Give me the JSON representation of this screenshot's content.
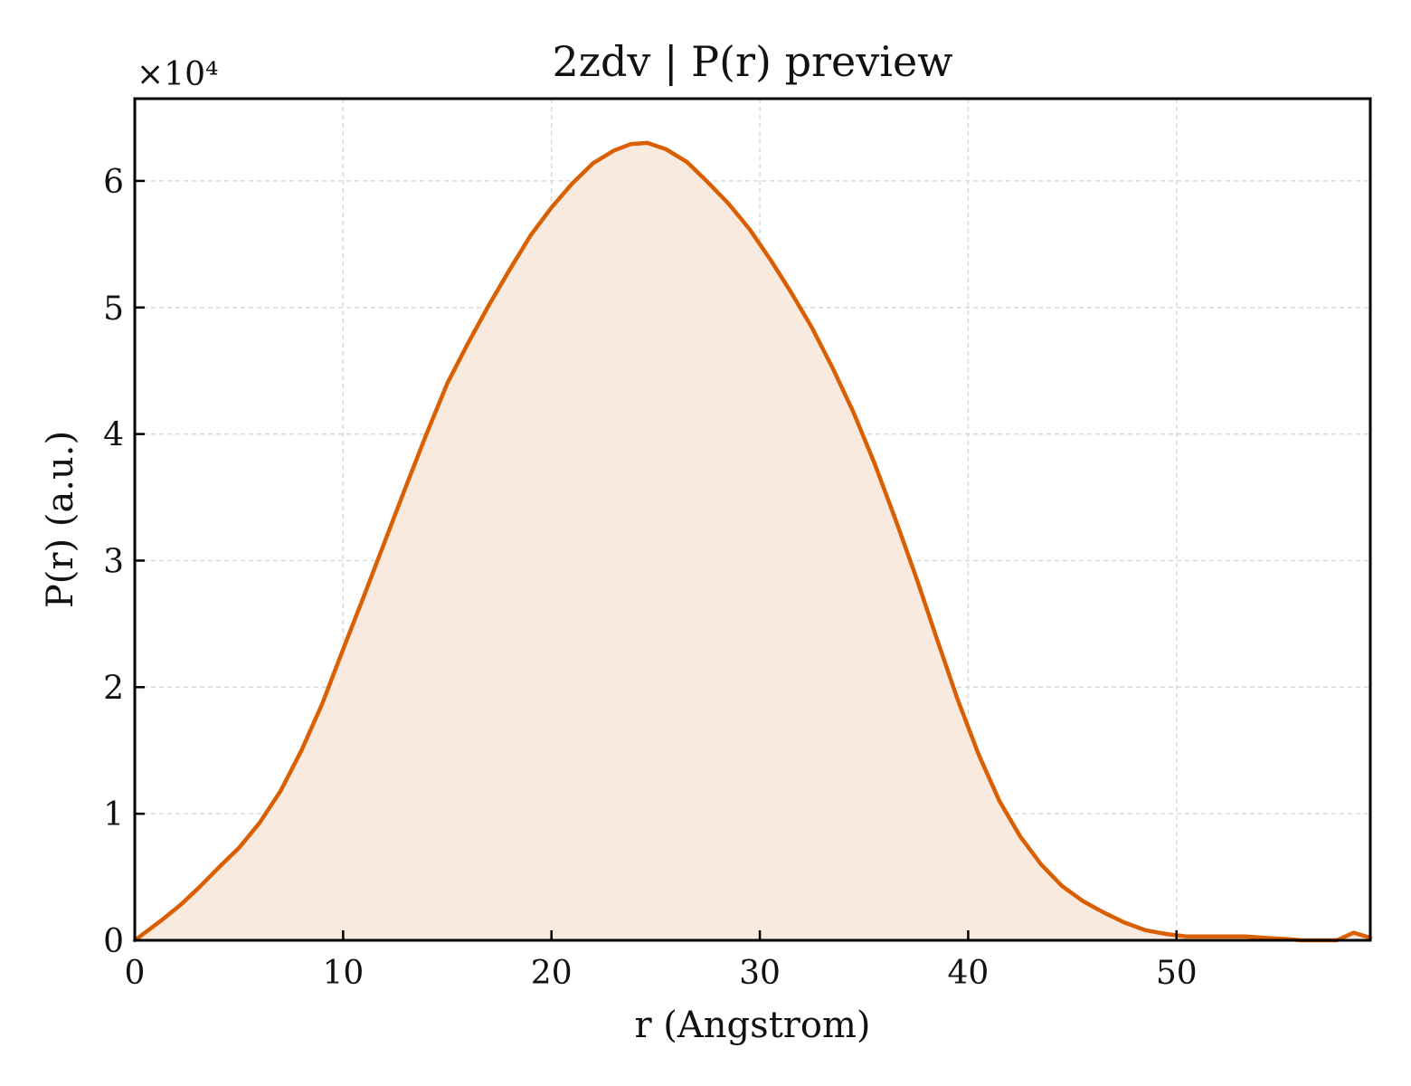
{
  "chart_data": {
    "type": "area",
    "title": "2zdv | P(r) preview",
    "xlabel": "r (Angstrom)",
    "ylabel": "P(r) (a.u.)",
    "y_multiplier": "×10⁴",
    "xlim": [
      0,
      59.3
    ],
    "ylim": [
      0,
      6.65
    ],
    "xticks": [
      0,
      10,
      20,
      30,
      40,
      50
    ],
    "yticks": [
      0,
      1,
      2,
      3,
      4,
      5,
      6
    ],
    "grid": true,
    "line_color": "#d95f02",
    "fill_color": "#f8eadf",
    "series": [
      {
        "x": [
          0,
          1.3,
          2.2,
          3.1,
          4.0,
          5.0,
          6.0,
          7.0,
          8.0,
          9.0,
          10.0,
          11.0,
          12.0,
          13.0,
          14.0,
          15.0,
          16.0,
          17.0,
          18.0,
          19.0,
          20.0,
          21.0,
          22.0,
          23.0,
          23.8,
          24.6,
          25.5,
          26.5,
          27.5,
          28.5,
          29.5,
          30.5,
          31.5,
          32.5,
          33.5,
          34.5,
          35.5,
          36.5,
          37.5,
          38.5,
          39.5,
          40.5,
          41.5,
          42.5,
          43.5,
          44.5,
          45.5,
          46.5,
          47.5,
          48.5,
          49.5,
          50.5,
          51.3,
          52.2,
          53.3,
          54.2,
          55.3,
          56.0,
          57.7,
          58.5,
          59.3
        ],
        "y": [
          0,
          0.16,
          0.28,
          0.42,
          0.57,
          0.73,
          0.93,
          1.18,
          1.5,
          1.87,
          2.3,
          2.72,
          3.15,
          3.58,
          4.0,
          4.4,
          4.72,
          5.02,
          5.3,
          5.57,
          5.79,
          5.98,
          6.14,
          6.24,
          6.29,
          6.3,
          6.25,
          6.15,
          5.99,
          5.82,
          5.62,
          5.38,
          5.12,
          4.84,
          4.52,
          4.17,
          3.77,
          3.33,
          2.87,
          2.38,
          1.9,
          1.47,
          1.1,
          0.82,
          0.6,
          0.43,
          0.31,
          0.22,
          0.14,
          0.08,
          0.05,
          0.03,
          0.03,
          0.03,
          0.03,
          0.02,
          0.01,
          0,
          0,
          0.06,
          0.02
        ]
      }
    ]
  }
}
